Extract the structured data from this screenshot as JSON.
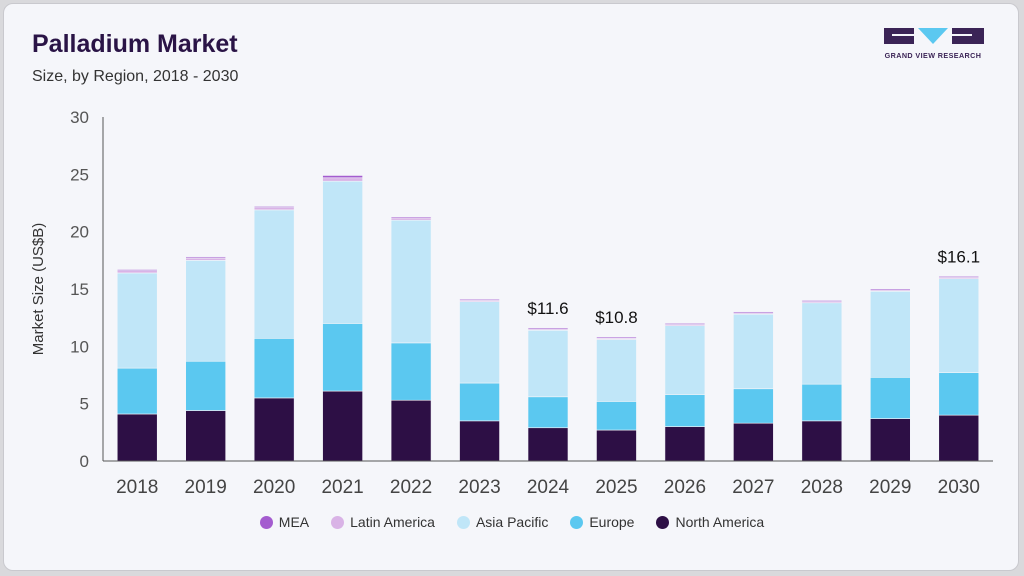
{
  "header": {
    "title": "Palladium Market",
    "subtitle": "Size, by Region, 2018 - 2030"
  },
  "logo": {
    "text": "GRAND VIEW RESEARCH"
  },
  "chart_data": {
    "type": "bar",
    "stacked": true,
    "title": "Palladium Market",
    "subtitle": "Size, by Region, 2018 - 2030",
    "xlabel": "",
    "ylabel": "Market Size (US$B)",
    "ylim": [
      0,
      30
    ],
    "yticks": [
      0,
      5,
      10,
      15,
      20,
      25,
      30
    ],
    "grid": false,
    "legend_position": "bottom",
    "categories": [
      "2018",
      "2019",
      "2020",
      "2021",
      "2022",
      "2023",
      "2024",
      "2025",
      "2026",
      "2027",
      "2028",
      "2029",
      "2030"
    ],
    "series": [
      {
        "name": "North America",
        "color": "#2d0f45",
        "values": [
          4.1,
          4.4,
          5.5,
          6.1,
          5.3,
          3.5,
          2.9,
          2.7,
          3.0,
          3.3,
          3.5,
          3.7,
          4.0
        ]
      },
      {
        "name": "Europe",
        "color": "#5bc8f0",
        "values": [
          4.0,
          4.3,
          5.2,
          5.9,
          5.0,
          3.3,
          2.7,
          2.5,
          2.8,
          3.0,
          3.2,
          3.6,
          3.7
        ]
      },
      {
        "name": "Asia Pacific",
        "color": "#c0e6f8",
        "values": [
          8.3,
          8.8,
          11.2,
          12.4,
          10.7,
          7.1,
          5.8,
          5.4,
          6.0,
          6.5,
          7.1,
          7.5,
          8.2
        ]
      },
      {
        "name": "Latin America",
        "color": "#d9b3e6",
        "values": [
          0.2,
          0.2,
          0.2,
          0.3,
          0.2,
          0.1,
          0.1,
          0.1,
          0.1,
          0.1,
          0.1,
          0.1,
          0.1
        ]
      },
      {
        "name": "MEA",
        "color": "#a45ccf",
        "values": [
          0.1,
          0.1,
          0.1,
          0.2,
          0.1,
          0.1,
          0.1,
          0.1,
          0.1,
          0.1,
          0.1,
          0.1,
          0.1
        ]
      }
    ],
    "legend_order": [
      "MEA",
      "Latin America",
      "Asia Pacific",
      "Europe",
      "North America"
    ],
    "annotations": [
      {
        "category": "2024",
        "text": "$11.6"
      },
      {
        "category": "2025",
        "text": "$10.8"
      },
      {
        "category": "2030",
        "text": "$16.1"
      }
    ]
  }
}
